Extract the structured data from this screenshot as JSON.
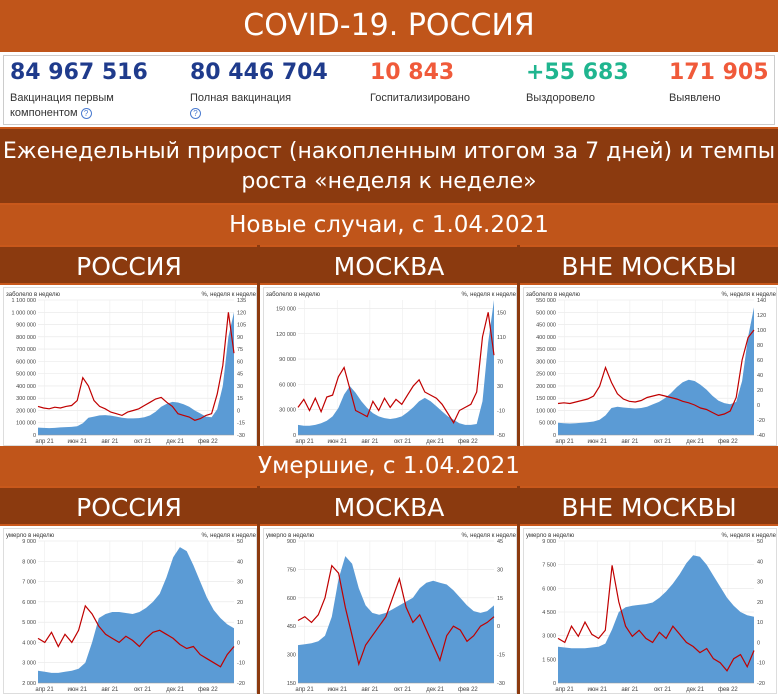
{
  "title": "COVID-19. РОССИЯ",
  "stats": [
    {
      "value": "84 967 516",
      "label": "Вакцинация первым компонентом",
      "color": "#1f3b8c",
      "help": true
    },
    {
      "value": "80 446 704",
      "label": "Полная вакцинация",
      "color": "#1f3b8c",
      "help": true
    },
    {
      "value": "10 843",
      "label": "Госпитализировано",
      "color": "#f05a3a",
      "help": false
    },
    {
      "value": "+55 683",
      "label": "Выздоровело",
      "color": "#1fb58f",
      "help": false
    },
    {
      "value": "171 905",
      "label": "Выявлено",
      "color": "#f05a3a",
      "help": false
    }
  ],
  "weekly_title": "Еженедельный прирост (накопленным итогом за 7 дней) и темпы роста «неделя к неделе»",
  "new_cases_title": "Новые случаи, с 1.04.2021",
  "deaths_title": "Умершие, с 1.04.2021",
  "columns": [
    "РОССИЯ",
    "МОСКВА",
    "ВНЕ МОСКВЫ"
  ],
  "colors": {
    "area": "#5b9bd5",
    "line": "#c00000"
  },
  "chart_data": [
    {
      "type": "area",
      "region": "РОССИЯ",
      "metric": "cases",
      "ylabel": "заболело в неделю",
      "y2label": "%, неделя к неделе",
      "ylim": [
        0,
        1100000
      ],
      "yticks": [
        0,
        100000,
        200000,
        300000,
        400000,
        500000,
        600000,
        700000,
        800000,
        900000,
        1000000,
        1100000
      ],
      "ytick_labels": [
        "0",
        "100 000",
        "200 000",
        "300 000",
        "400 000",
        "500 000",
        "600 000",
        "700 000",
        "800 000",
        "900 000",
        "1 000 000",
        "1 100 000"
      ],
      "y2lim": [
        -30,
        135
      ],
      "y2ticks": [
        -30,
        -15,
        0,
        15,
        30,
        45,
        60,
        75,
        90,
        105,
        120,
        135
      ],
      "x_labels": [
        "апр 21",
        "июн 21",
        "авг 21",
        "окт 21",
        "дек 21",
        "фев 22"
      ],
      "area": [
        60000,
        58000,
        56000,
        58000,
        62000,
        64000,
        66000,
        72000,
        95000,
        140000,
        150000,
        160000,
        162000,
        158000,
        150000,
        140000,
        135000,
        135000,
        138000,
        145000,
        160000,
        190000,
        230000,
        255000,
        270000,
        265000,
        250000,
        230000,
        200000,
        175000,
        150000,
        145000,
        210000,
        400000,
        800000,
        1000000
      ],
      "line": [
        5,
        3,
        2,
        4,
        3,
        5,
        6,
        12,
        40,
        30,
        12,
        5,
        2,
        -2,
        -4,
        -6,
        -2,
        0,
        2,
        6,
        10,
        14,
        16,
        10,
        5,
        -4,
        -6,
        -8,
        -12,
        -10,
        -6,
        -4,
        20,
        55,
        120,
        70
      ]
    },
    {
      "type": "area",
      "region": "МОСКВА",
      "metric": "cases",
      "ylabel": "заболело в неделю",
      "y2label": "%, неделя к неделе",
      "ylim": [
        0,
        160000
      ],
      "yticks": [
        0,
        30000,
        60000,
        90000,
        120000,
        150000
      ],
      "ytick_labels": [
        "0",
        "30 000",
        "60 000",
        "90 000",
        "120 000",
        "150 000"
      ],
      "y2lim": [
        -50,
        170
      ],
      "y2ticks": [
        -50,
        -10,
        30,
        70,
        110,
        150
      ],
      "x_labels": [
        "апр 21",
        "июн 21",
        "авг 21",
        "окт 21",
        "дек 21",
        "фев 22"
      ],
      "area": [
        12000,
        11000,
        11000,
        12000,
        14000,
        17000,
        22000,
        32000,
        48000,
        58000,
        50000,
        40000,
        32000,
        26000,
        22000,
        20000,
        19000,
        20000,
        22000,
        27000,
        33000,
        40000,
        44000,
        40000,
        34000,
        28000,
        22000,
        18000,
        14000,
        12000,
        12000,
        13000,
        40000,
        110000,
        160000
      ],
      "line": [
        -5,
        8,
        -10,
        10,
        -12,
        12,
        15,
        45,
        60,
        25,
        -10,
        -15,
        -20,
        5,
        -10,
        10,
        -5,
        8,
        0,
        15,
        30,
        40,
        20,
        15,
        10,
        0,
        -15,
        -30,
        -10,
        -5,
        0,
        20,
        110,
        150,
        80
      ]
    },
    {
      "type": "area",
      "region": "ВНЕ МОСКВЫ",
      "metric": "cases",
      "ylabel": "заболело в неделю",
      "y2label": "%, неделя к неделе",
      "ylim": [
        0,
        550000
      ],
      "yticks": [
        0,
        50000,
        100000,
        150000,
        200000,
        250000,
        300000,
        350000,
        400000,
        450000,
        500000,
        550000
      ],
      "ytick_labels": [
        "0",
        "50 000",
        "100 000",
        "150 000",
        "200 000",
        "250 000",
        "300 000",
        "350 000",
        "400 000",
        "450 000",
        "500 000",
        "550 000"
      ],
      "y2lim": [
        -40,
        140
      ],
      "y2ticks": [
        -40,
        -20,
        0,
        20,
        40,
        60,
        80,
        100,
        120,
        140
      ],
      "x_labels": [
        "апр 21",
        "июн 21",
        "авг 21",
        "окт 21",
        "дек 21",
        "фев 22"
      ],
      "area": [
        50000,
        48000,
        47000,
        48000,
        50000,
        52000,
        55000,
        62000,
        80000,
        110000,
        115000,
        112000,
        110000,
        108000,
        110000,
        115000,
        125000,
        135000,
        150000,
        170000,
        195000,
        215000,
        225000,
        220000,
        205000,
        185000,
        160000,
        140000,
        130000,
        125000,
        135000,
        220000,
        400000,
        520000
      ],
      "line": [
        2,
        3,
        2,
        4,
        6,
        8,
        12,
        25,
        50,
        30,
        15,
        8,
        5,
        4,
        6,
        10,
        12,
        14,
        12,
        10,
        8,
        5,
        3,
        0,
        -4,
        -6,
        -10,
        -14,
        -12,
        -8,
        10,
        60,
        90,
        100
      ]
    },
    {
      "type": "area",
      "region": "РОССИЯ",
      "metric": "deaths",
      "ylabel": "умерло в неделю",
      "y2label": "%, неделя к неделе",
      "ylim": [
        2000,
        9000
      ],
      "yticks": [
        2000,
        3000,
        4000,
        5000,
        6000,
        7000,
        8000,
        9000
      ],
      "ytick_labels": [
        "2 000",
        "3 000",
        "4 000",
        "5 000",
        "6 000",
        "7 000",
        "8 000",
        "9 000"
      ],
      "y2lim": [
        -20,
        50
      ],
      "y2ticks": [
        -20,
        -10,
        0,
        10,
        20,
        30,
        40,
        50
      ],
      "x_labels": [
        "апр 21",
        "июн 21",
        "авг 21",
        "окт 21",
        "дек 21",
        "фев 22"
      ],
      "area": [
        2600,
        2550,
        2500,
        2500,
        2550,
        2600,
        2700,
        3000,
        4000,
        5200,
        5400,
        5500,
        5500,
        5450,
        5400,
        5500,
        5700,
        6000,
        6400,
        7200,
        8200,
        8700,
        8500,
        7800,
        7000,
        6200,
        5600,
        5200,
        4900,
        4700
      ],
      "line": [
        2,
        0,
        5,
        -2,
        4,
        0,
        6,
        18,
        14,
        8,
        4,
        2,
        0,
        3,
        1,
        -2,
        2,
        5,
        6,
        4,
        2,
        -1,
        -3,
        -2,
        -6,
        -8,
        -10,
        -12,
        -6,
        -2
      ]
    },
    {
      "type": "area",
      "region": "МОСКВА",
      "metric": "deaths",
      "ylabel": "умерло в неделю",
      "y2label": "%, неделя к неделе",
      "ylim": [
        150,
        900
      ],
      "yticks": [
        150,
        300,
        450,
        600,
        750,
        900
      ],
      "ytick_labels": [
        "150",
        "300",
        "450",
        "600",
        "750",
        "900"
      ],
      "y2lim": [
        -30,
        45
      ],
      "y2ticks": [
        -30,
        -15,
        0,
        15,
        30,
        45
      ],
      "x_labels": [
        "апр 21",
        "июн 21",
        "авг 21",
        "окт 21",
        "дек 21",
        "фев 22"
      ],
      "area": [
        350,
        355,
        360,
        370,
        400,
        500,
        700,
        820,
        780,
        650,
        560,
        520,
        510,
        520,
        540,
        560,
        580,
        600,
        650,
        680,
        690,
        680,
        670,
        640,
        600,
        560,
        530,
        520,
        530,
        560
      ],
      "line": [
        3,
        5,
        2,
        6,
        15,
        32,
        28,
        10,
        -5,
        -20,
        -10,
        -5,
        0,
        5,
        15,
        25,
        10,
        2,
        6,
        -2,
        -10,
        -18,
        -5,
        0,
        -2,
        -8,
        -5,
        0,
        2,
        5
      ]
    },
    {
      "type": "area",
      "region": "ВНЕ МОСКВЫ",
      "metric": "deaths",
      "ylabel": "умерло в неделю",
      "y2label": "%, неделя к неделе",
      "ylim": [
        0,
        9000
      ],
      "yticks": [
        0,
        1500,
        3000,
        4500,
        6000,
        7500,
        9000
      ],
      "ytick_labels": [
        "0",
        "1 500",
        "3 000",
        "4 500",
        "6 000",
        "7 500",
        "9 000"
      ],
      "y2lim": [
        -20,
        50
      ],
      "y2ticks": [
        -20,
        -10,
        0,
        10,
        20,
        30,
        40,
        50
      ],
      "x_labels": [
        "апр 21",
        "июн 21",
        "авг 21",
        "окт 21",
        "дек 21",
        "фев 22"
      ],
      "area": [
        2300,
        2250,
        2200,
        2200,
        2200,
        2250,
        2300,
        2500,
        3400,
        4500,
        4800,
        4900,
        4950,
        5000,
        5100,
        5400,
        5800,
        6300,
        6900,
        7600,
        8100,
        8000,
        7500,
        6800,
        6100,
        5400,
        4900,
        4500,
        4300,
        4200
      ],
      "line": [
        2,
        0,
        8,
        3,
        10,
        4,
        2,
        6,
        38,
        20,
        8,
        3,
        6,
        2,
        0,
        5,
        2,
        8,
        4,
        0,
        -2,
        -5,
        -3,
        -8,
        -10,
        -14,
        -8,
        -6,
        -12,
        -4
      ]
    }
  ]
}
